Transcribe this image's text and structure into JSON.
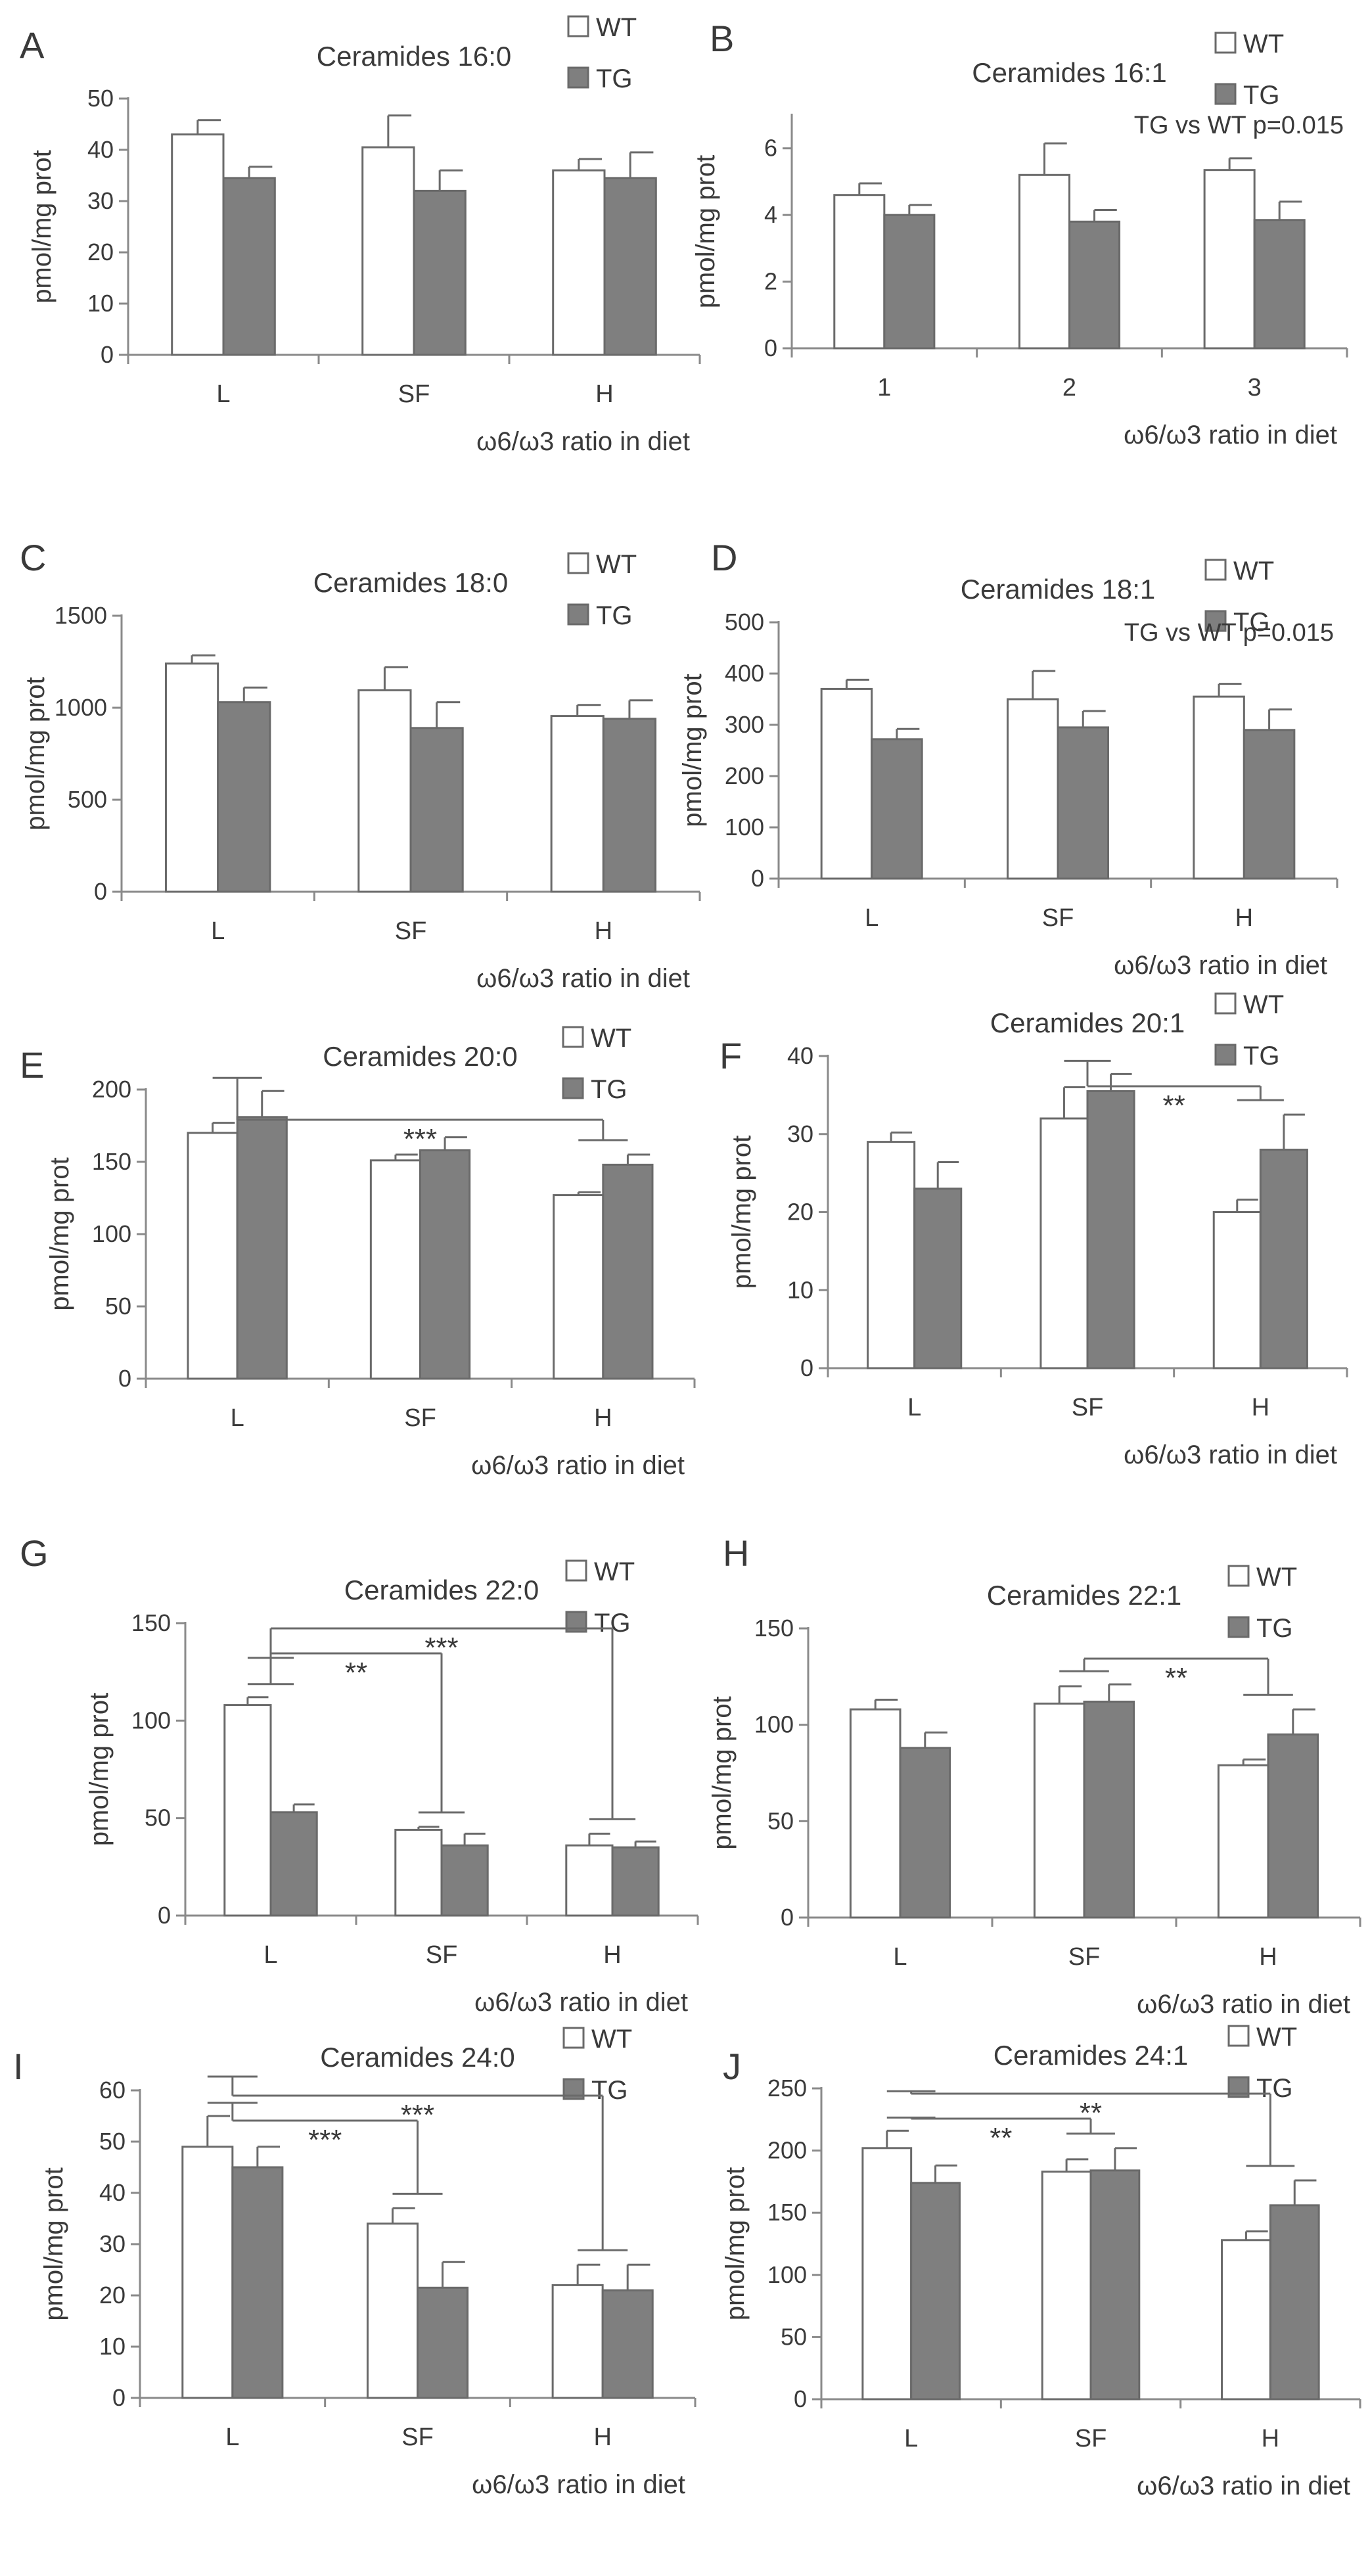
{
  "figure": {
    "legend_labels": {
      "wt": "WT",
      "tg": "TG"
    },
    "colors": {
      "wt": "#ffffff",
      "tg": "#7f7f7f",
      "stroke": "#6a6a6a",
      "text": "#3a3a3a",
      "axis": "#8a8a8a"
    }
  },
  "chart_data": [
    {
      "panel": "A",
      "type": "bar",
      "title": "Ceramides 16:0",
      "ylabel": "pmol/mg prot",
      "xlabel": "ω6/ω3 ratio in diet",
      "categories": [
        "L",
        "SF",
        "H"
      ],
      "ylim": [
        0,
        50
      ],
      "yticks": [
        0,
        10,
        20,
        30,
        40,
        50
      ],
      "legend": [
        "WT",
        "TG"
      ],
      "series": [
        {
          "name": "WT",
          "values": [
            43,
            40.5,
            36
          ],
          "errors": [
            2.8,
            6.2,
            2.2
          ]
        },
        {
          "name": "TG",
          "values": [
            34.5,
            32,
            34.5
          ],
          "errors": [
            2.2,
            4.0,
            5.0
          ]
        }
      ],
      "annotation": "",
      "brackets": []
    },
    {
      "panel": "B",
      "type": "bar",
      "title": "Ceramides 16:1",
      "ylabel": "pmol/mg prot",
      "xlabel": "ω6/ω3 ratio in diet",
      "categories": [
        "1",
        "2",
        "3"
      ],
      "ylim": [
        0,
        7
      ],
      "yticks": [
        0,
        2,
        4,
        6
      ],
      "legend": [
        "WT",
        "TG"
      ],
      "series": [
        {
          "name": "WT",
          "values": [
            4.6,
            5.2,
            5.35
          ],
          "errors": [
            0.35,
            0.95,
            0.35
          ]
        },
        {
          "name": "TG",
          "values": [
            4.0,
            3.8,
            3.85
          ],
          "errors": [
            0.3,
            0.35,
            0.55
          ]
        }
      ],
      "annotation": "TG vs WT p=0.015",
      "brackets": []
    },
    {
      "panel": "C",
      "type": "bar",
      "title": "Ceramides 18:0",
      "ylabel": "pmol/mg prot",
      "xlabel": "ω6/ω3 ratio in diet",
      "categories": [
        "L",
        "SF",
        "H"
      ],
      "ylim": [
        0,
        1500
      ],
      "yticks": [
        0,
        500,
        1000,
        1500
      ],
      "legend": [
        "WT",
        "TG"
      ],
      "series": [
        {
          "name": "WT",
          "values": [
            1240,
            1095,
            955
          ],
          "errors": [
            45,
            125,
            60
          ]
        },
        {
          "name": "TG",
          "values": [
            1030,
            890,
            940
          ],
          "errors": [
            80,
            140,
            100
          ]
        }
      ],
      "annotation": "",
      "brackets": []
    },
    {
      "panel": "D",
      "type": "bar",
      "title": "Ceramides 18:1",
      "ylabel": "pmol/mg prot",
      "xlabel": "ω6/ω3 ratio in diet",
      "categories": [
        "L",
        "SF",
        "H"
      ],
      "ylim": [
        0,
        500
      ],
      "yticks": [
        0,
        100,
        200,
        300,
        400,
        500
      ],
      "legend": [
        "WT",
        "TG"
      ],
      "series": [
        {
          "name": "WT",
          "values": [
            370,
            350,
            355
          ],
          "errors": [
            18,
            55,
            25
          ]
        },
        {
          "name": "TG",
          "values": [
            272,
            295,
            290
          ],
          "errors": [
            20,
            32,
            40
          ]
        }
      ],
      "annotation": "TG vs WT p=0.015",
      "brackets": []
    },
    {
      "panel": "E",
      "type": "bar",
      "title": "Ceramides 20:0",
      "ylabel": "pmol/mg prot",
      "xlabel": "ω6/ω3 ratio in diet",
      "categories": [
        "L",
        "SF",
        "H"
      ],
      "ylim": [
        0,
        200
      ],
      "yticks": [
        0,
        50,
        100,
        150,
        200
      ],
      "legend": [
        "WT",
        "TG"
      ],
      "series": [
        {
          "name": "WT",
          "values": [
            170,
            151,
            127
          ],
          "errors": [
            7,
            4,
            2
          ]
        },
        {
          "name": "TG",
          "values": [
            181,
            158,
            148
          ],
          "errors": [
            18,
            9,
            7
          ]
        }
      ],
      "annotation": "",
      "brackets": [
        {
          "from": 0,
          "to": 2,
          "level": 1,
          "label": "***"
        }
      ]
    },
    {
      "panel": "F",
      "type": "bar",
      "title": "Ceramides 20:1",
      "ylabel": "pmol/mg prot",
      "xlabel": "ω6/ω3 ratio in diet",
      "categories": [
        "L",
        "SF",
        "H"
      ],
      "ylim": [
        0,
        40
      ],
      "yticks": [
        0,
        10,
        20,
        30,
        40
      ],
      "legend": [
        "WT",
        "TG"
      ],
      "series": [
        {
          "name": "WT",
          "values": [
            29,
            32,
            20
          ],
          "errors": [
            1.2,
            4.0,
            1.6
          ]
        },
        {
          "name": "TG",
          "values": [
            23,
            35.5,
            28
          ],
          "errors": [
            3.4,
            2.2,
            4.5
          ]
        }
      ],
      "annotation": "",
      "brackets": [
        {
          "from": 1,
          "to": 2,
          "level": 1,
          "label": "**"
        }
      ]
    },
    {
      "panel": "G",
      "type": "bar",
      "title": "Ceramides 22:0",
      "ylabel": "pmol/mg prot",
      "xlabel": "ω6/ω3 ratio in diet",
      "categories": [
        "L",
        "SF",
        "H"
      ],
      "ylim": [
        0,
        150
      ],
      "yticks": [
        0,
        50,
        100,
        150
      ],
      "legend": [
        "WT",
        "TG"
      ],
      "series": [
        {
          "name": "WT",
          "values": [
            108,
            44,
            36
          ],
          "errors": [
            4,
            1.5,
            6
          ]
        },
        {
          "name": "TG",
          "values": [
            53,
            36,
            35
          ],
          "errors": [
            4,
            6,
            3
          ]
        }
      ],
      "annotation": "",
      "brackets": [
        {
          "from": 0,
          "to": 1,
          "level": 1,
          "label": "**"
        },
        {
          "from": 0,
          "to": 2,
          "level": 2,
          "label": "***"
        }
      ]
    },
    {
      "panel": "H",
      "type": "bar",
      "title": "Ceramides 22:1",
      "ylabel": "pmol/mg prot",
      "xlabel": "ω6/ω3 ratio in diet",
      "categories": [
        "L",
        "SF",
        "H"
      ],
      "ylim": [
        0,
        150
      ],
      "yticks": [
        0,
        50,
        100,
        150
      ],
      "legend": [
        "WT",
        "TG"
      ],
      "series": [
        {
          "name": "WT",
          "values": [
            108,
            111,
            79
          ],
          "errors": [
            5,
            9,
            3
          ]
        },
        {
          "name": "TG",
          "values": [
            88,
            112,
            95
          ],
          "errors": [
            8,
            9,
            13
          ]
        }
      ],
      "annotation": "",
      "brackets": [
        {
          "from": 1,
          "to": 2,
          "level": 1,
          "label": "**"
        }
      ]
    },
    {
      "panel": "I",
      "type": "bar",
      "title": "Ceramides 24:0",
      "ylabel": "pmol/mg prot",
      "xlabel": "ω6/ω3 ratio in diet",
      "categories": [
        "L",
        "SF",
        "H"
      ],
      "ylim": [
        0,
        60
      ],
      "yticks": [
        0,
        10,
        20,
        30,
        40,
        50,
        60
      ],
      "legend": [
        "WT",
        "TG"
      ],
      "series": [
        {
          "name": "WT",
          "values": [
            49,
            34,
            22
          ],
          "errors": [
            6,
            3,
            4
          ]
        },
        {
          "name": "TG",
          "values": [
            45,
            21.5,
            21
          ],
          "errors": [
            4,
            5,
            5
          ]
        }
      ],
      "annotation": "",
      "brackets": [
        {
          "from": 0,
          "to": 1,
          "level": 1,
          "label": "***"
        },
        {
          "from": 0,
          "to": 2,
          "level": 2,
          "label": "***"
        }
      ]
    },
    {
      "panel": "J",
      "type": "bar",
      "title": "Ceramides 24:1",
      "ylabel": "pmol/mg prot",
      "xlabel": "ω6/ω3 ratio in diet",
      "categories": [
        "L",
        "SF",
        "H"
      ],
      "ylim": [
        0,
        250
      ],
      "yticks": [
        0,
        50,
        100,
        150,
        200,
        250
      ],
      "legend": [
        "WT",
        "TG"
      ],
      "series": [
        {
          "name": "WT",
          "values": [
            202,
            183,
            128
          ],
          "errors": [
            14,
            10,
            7
          ]
        },
        {
          "name": "TG",
          "values": [
            174,
            184,
            156
          ],
          "errors": [
            14,
            18,
            20
          ]
        }
      ],
      "annotation": "",
      "brackets": [
        {
          "from": 0,
          "to": 1,
          "level": 1,
          "label": "**"
        },
        {
          "from": 0,
          "to": 2,
          "level": 2,
          "label": "**"
        }
      ]
    }
  ]
}
